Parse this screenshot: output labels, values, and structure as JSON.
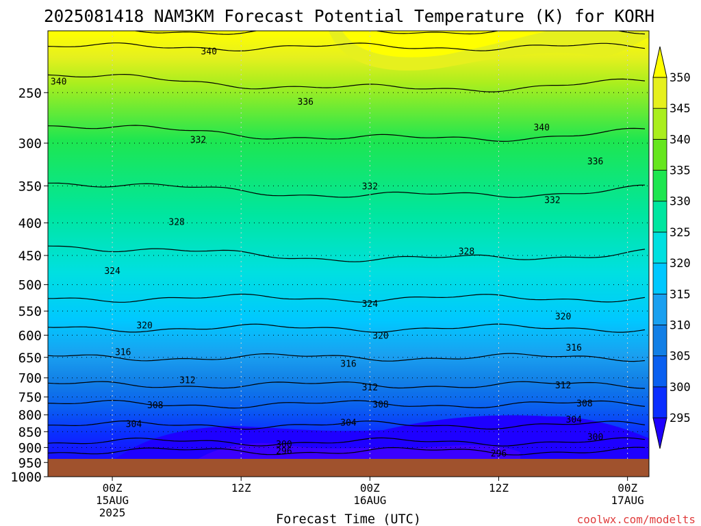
{
  "chart_data": {
    "type": "heatmap",
    "title": "2025081418 NAM3KM Forecast Potential Temperature (K) for KORH",
    "xlabel": "Forecast Time (UTC)",
    "ylabel": "",
    "credit": "coolwx.com/modelts",
    "y_scale": "log-pressure",
    "ylim": [
      1000,
      200
    ],
    "xlim": [
      "2025-08-14T18Z",
      "2025-08-17T02Z"
    ],
    "y_ticks": [
      250,
      300,
      350,
      400,
      450,
      500,
      550,
      600,
      650,
      700,
      750,
      800,
      850,
      900,
      950,
      1000
    ],
    "x_ticks": [
      {
        "t": "2025-08-15T00Z",
        "lines": [
          "00Z",
          "15AUG",
          "2025"
        ]
      },
      {
        "t": "2025-08-15T12Z",
        "lines": [
          "12Z"
        ]
      },
      {
        "t": "2025-08-16T00Z",
        "lines": [
          "00Z",
          "16AUG"
        ]
      },
      {
        "t": "2025-08-16T12Z",
        "lines": [
          "12Z"
        ]
      },
      {
        "t": "2025-08-17T00Z",
        "lines": [
          "00Z",
          "17AUG"
        ]
      }
    ],
    "grid": "dotted",
    "colorbar": {
      "placement": "right",
      "levels": [
        295,
        300,
        305,
        310,
        315,
        320,
        325,
        330,
        335,
        340,
        345,
        350
      ],
      "colors": [
        "#1e00ff",
        "#0a2eff",
        "#0a5ff0",
        "#127fe6",
        "#1aa0f0",
        "#00c8ff",
        "#00e0e0",
        "#00e6a0",
        "#1ee650",
        "#66e61e",
        "#aaee1e",
        "#e6f01e",
        "#ffff00"
      ]
    },
    "ground_color": "#a0522d",
    "contour_interval": 4,
    "contour_labels": [
      {
        "time": "2025-08-14T19Z",
        "p": 240,
        "value": "340"
      },
      {
        "time": "2025-08-15T09Z",
        "p": 215,
        "value": "340"
      },
      {
        "time": "2025-08-15T18Z",
        "p": 258,
        "value": "336"
      },
      {
        "time": "2025-08-16T16Z",
        "p": 283,
        "value": "340"
      },
      {
        "time": "2025-08-16T21Z",
        "p": 320,
        "value": "336"
      },
      {
        "time": "2025-08-15T08Z",
        "p": 296,
        "value": "332"
      },
      {
        "time": "2025-08-16T00Z",
        "p": 350,
        "value": "332"
      },
      {
        "time": "2025-08-16T17Z",
        "p": 368,
        "value": "332"
      },
      {
        "time": "2025-08-15T06Z",
        "p": 398,
        "value": "328"
      },
      {
        "time": "2025-08-16T09Z",
        "p": 443,
        "value": "328"
      },
      {
        "time": "2025-08-15T00Z",
        "p": 475,
        "value": "324"
      },
      {
        "time": "2025-08-16T00Z",
        "p": 535,
        "value": "324"
      },
      {
        "time": "2025-08-15T03Z",
        "p": 578,
        "value": "320"
      },
      {
        "time": "2025-08-16T01Z",
        "p": 600,
        "value": "320"
      },
      {
        "time": "2025-08-16T18Z",
        "p": 560,
        "value": "320"
      },
      {
        "time": "2025-08-15T01Z",
        "p": 637,
        "value": "316"
      },
      {
        "time": "2025-08-15T22Z",
        "p": 664,
        "value": "316"
      },
      {
        "time": "2025-08-16T19Z",
        "p": 627,
        "value": "316"
      },
      {
        "time": "2025-08-15T07Z",
        "p": 705,
        "value": "312"
      },
      {
        "time": "2025-08-16T00Z",
        "p": 723,
        "value": "312"
      },
      {
        "time": "2025-08-16T18Z",
        "p": 718,
        "value": "312"
      },
      {
        "time": "2025-08-15T04Z",
        "p": 771,
        "value": "308"
      },
      {
        "time": "2025-08-16T01Z",
        "p": 769,
        "value": "308"
      },
      {
        "time": "2025-08-16T20Z",
        "p": 767,
        "value": "308"
      },
      {
        "time": "2025-08-15T02Z",
        "p": 826,
        "value": "304"
      },
      {
        "time": "2025-08-15T22Z",
        "p": 822,
        "value": "304"
      },
      {
        "time": "2025-08-16T19Z",
        "p": 812,
        "value": "304"
      },
      {
        "time": "2025-08-15T16Z",
        "p": 888,
        "value": "300"
      },
      {
        "time": "2025-08-16T21Z",
        "p": 865,
        "value": "300"
      },
      {
        "time": "2025-08-15T16Z",
        "p": 910,
        "value": "296"
      },
      {
        "time": "2025-08-16T12Z",
        "p": 918,
        "value": "296"
      }
    ]
  }
}
